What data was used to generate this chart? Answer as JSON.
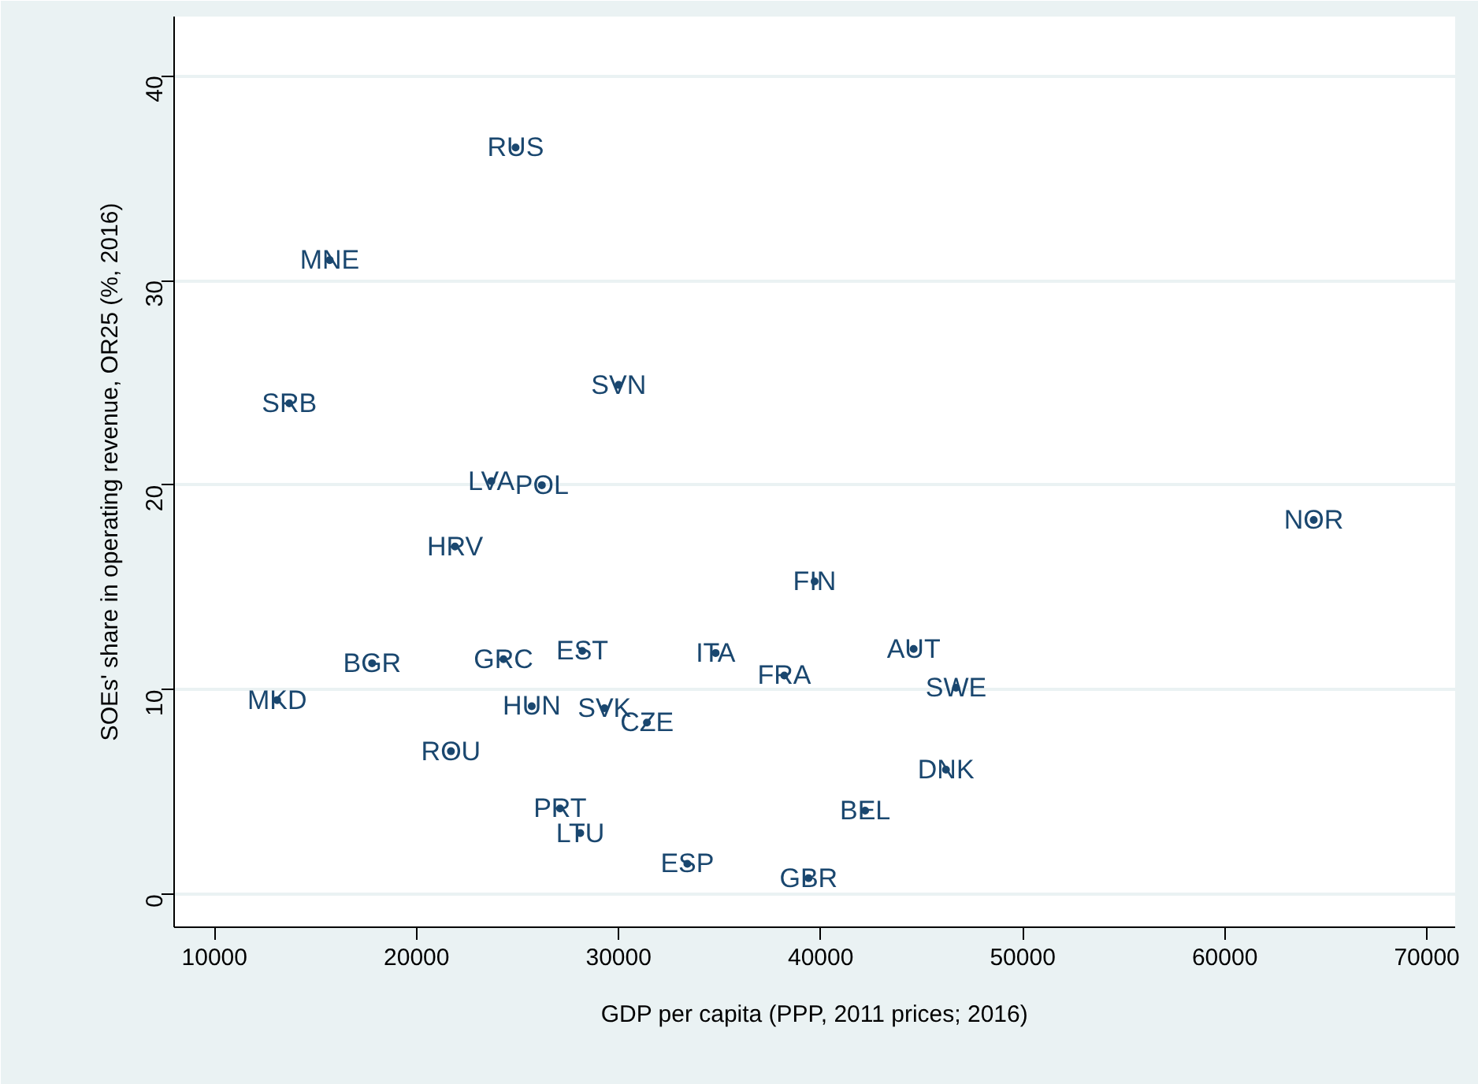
{
  "chart_data": {
    "type": "scatter",
    "xlabel": "GDP per capita (PPP, 2011 prices; 2016)",
    "ylabel": "SOEs' share in operating revenue, OR25 (%, 2016)",
    "xlim": [
      8000,
      71400
    ],
    "ylim": [
      -1.6,
      42.9
    ],
    "xticks": [
      10000,
      20000,
      30000,
      40000,
      50000,
      60000,
      70000
    ],
    "yticks": [
      0,
      10,
      20,
      30,
      40
    ],
    "grid": "y",
    "marker": "circle",
    "series": [
      {
        "color": "#1a476f",
        "x": [
          24900,
          15700,
          13700,
          30000,
          23700,
          26200,
          21900,
          64400,
          39700,
          17800,
          24300,
          28200,
          34800,
          44600,
          38200,
          46700,
          13100,
          25700,
          29300,
          31400,
          21700,
          46200,
          27100,
          42200,
          28100,
          33400,
          39400
        ],
        "values": [
          36.5,
          31.0,
          24.0,
          24.9,
          20.2,
          20.0,
          17.0,
          18.3,
          15.3,
          11.3,
          11.5,
          11.9,
          11.8,
          12.0,
          10.7,
          10.1,
          9.5,
          9.2,
          9.1,
          8.4,
          7.0,
          6.1,
          4.2,
          4.1,
          3.0,
          1.5,
          0.8
        ],
        "value_labels": [
          "RUS",
          "MNE",
          "SRB",
          "SVN",
          "LVA",
          "POL",
          "HRV",
          "NOR",
          "FIN",
          "BGR",
          "GRC",
          "EST",
          "ITA",
          "AUT",
          "FRA",
          "SWE",
          "MKD",
          "HUN",
          "SVK",
          "CZE",
          "ROU",
          "DNK",
          "PRT",
          "BEL",
          "LTU",
          "ESP",
          "GBR"
        ]
      }
    ]
  }
}
